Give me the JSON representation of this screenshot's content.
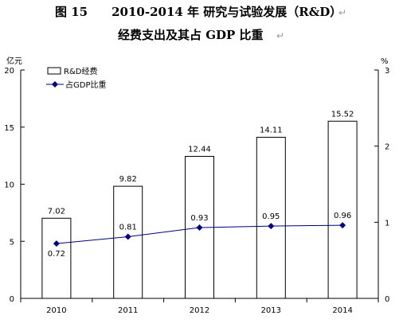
{
  "chart_data": {
    "type": "bar+line",
    "title_line1": "图 15　　2010-2014 年 研究与试验发展（R&D）",
    "title_line2": "经费支出及其占 GDP 比重",
    "title_mark": "↵",
    "left_unit": "亿元",
    "right_unit": "%",
    "categories": [
      "2010",
      "2011",
      "2012",
      "2013",
      "2014"
    ],
    "left_axis": {
      "min": 0,
      "max": 20,
      "ticks": [
        "0",
        "5",
        "10",
        "15",
        "20"
      ]
    },
    "right_axis": {
      "min": 0,
      "max": 3,
      "ticks": [
        "0",
        "1",
        "2",
        "3"
      ]
    },
    "series": [
      {
        "name": "R&D经费",
        "type": "bar",
        "axis": "left",
        "values": [
          7.02,
          9.82,
          12.44,
          14.11,
          15.52
        ],
        "labels": [
          "7.02",
          "9.82",
          "12.44",
          "14.11",
          "15.52"
        ]
      },
      {
        "name": "占GDP比重",
        "type": "line",
        "axis": "right",
        "values": [
          0.72,
          0.81,
          0.93,
          0.95,
          0.96
        ],
        "labels": [
          "0.72",
          "0.81",
          "0.93",
          "0.95",
          "0.96"
        ]
      }
    ],
    "legend_position": "top-left",
    "grid": false,
    "colors": {
      "bar_fill": "#ffffff",
      "bar_stroke": "#000000",
      "line": "#000080",
      "marker": "#000080"
    }
  }
}
